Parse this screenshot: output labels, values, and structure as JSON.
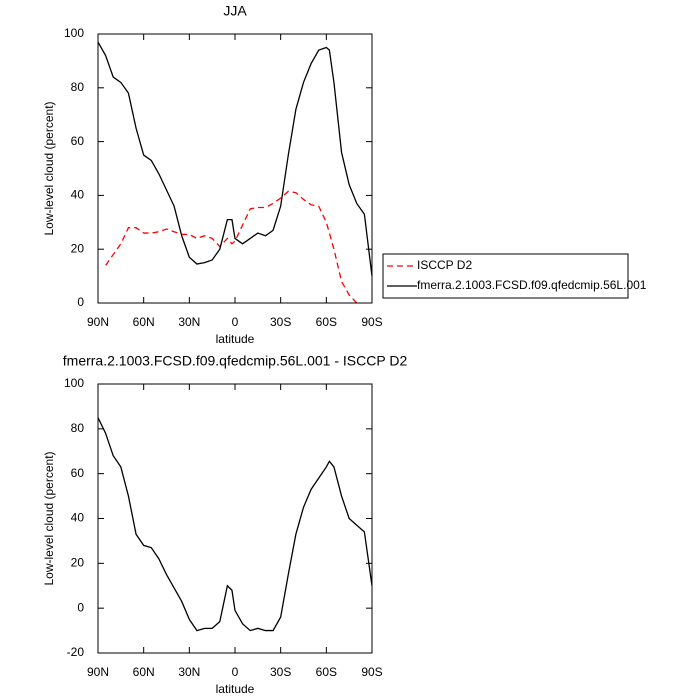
{
  "chart_data": [
    {
      "type": "line",
      "title": "JJA",
      "x_label": "latitude",
      "y_label": "Low-level cloud (percent)",
      "x": [
        90,
        85,
        80,
        75,
        70,
        65,
        60,
        55,
        50,
        45,
        40,
        35,
        30,
        25,
        20,
        15,
        10,
        5,
        2,
        0,
        -5,
        -10,
        -15,
        -20,
        -25,
        -30,
        -35,
        -40,
        -45,
        -50,
        -55,
        -60,
        -62,
        -65,
        -70,
        -75,
        -80,
        -85,
        -90
      ],
      "xlim": [
        90,
        -90
      ],
      "xticks": [
        {
          "value": 90,
          "label": "90N"
        },
        {
          "value": 60,
          "label": "60N"
        },
        {
          "value": 30,
          "label": "30N"
        },
        0,
        {
          "value": -30,
          "label": "30S"
        },
        {
          "value": -60,
          "label": "60S"
        },
        {
          "value": -90,
          "label": "90S"
        }
      ],
      "ylim": [
        0,
        100
      ],
      "yticks": [
        0,
        20,
        40,
        60,
        80,
        100
      ],
      "legend": "right",
      "series": [
        {
          "name": "ISCCP D2",
          "color": "#ff0000",
          "line_style": "dashed",
          "values": [
            null,
            14,
            18,
            22,
            28,
            28,
            26,
            26,
            26.5,
            27.5,
            26.5,
            25.5,
            25.5,
            24,
            25,
            24,
            21,
            24,
            22,
            23,
            29,
            35,
            35.5,
            35.5,
            37,
            39,
            41.5,
            41,
            38.5,
            36.5,
            36,
            30,
            26,
            20,
            8,
            3,
            0,
            null,
            null
          ]
        },
        {
          "name": "fmerra.2.1003.FCSD.f09.qfedcmip.56L.001",
          "color": "#000000",
          "line_style": "solid",
          "values": [
            97,
            92,
            84,
            82,
            78,
            65,
            55,
            53,
            48,
            42,
            36,
            25,
            17,
            14.5,
            15,
            16,
            20,
            31,
            31,
            24,
            22,
            24,
            26,
            25,
            27,
            36,
            55,
            72,
            82,
            89,
            94,
            95,
            94,
            82,
            56,
            44,
            37,
            33,
            10
          ]
        }
      ]
    },
    {
      "type": "line",
      "title": "fmerra.2.1003.FCSD.f09.qfedcmip.56L.001 - ISCCP D2",
      "x_label": "latitude",
      "y_label": "Low-level cloud (percent)",
      "x": [
        90,
        85,
        80,
        75,
        70,
        65,
        60,
        55,
        50,
        45,
        40,
        35,
        30,
        25,
        20,
        15,
        10,
        5,
        2,
        0,
        -5,
        -10,
        -15,
        -20,
        -25,
        -30,
        -35,
        -40,
        -45,
        -50,
        -55,
        -60,
        -62,
        -65,
        -70,
        -75,
        -80,
        -85,
        -90
      ],
      "xlim": [
        90,
        -90
      ],
      "xticks": [
        {
          "value": 90,
          "label": "90N"
        },
        {
          "value": 60,
          "label": "60N"
        },
        {
          "value": 30,
          "label": "30N"
        },
        0,
        {
          "value": -30,
          "label": "30S"
        },
        {
          "value": -60,
          "label": "60S"
        },
        {
          "value": -90,
          "label": "90S"
        }
      ],
      "ylim": [
        -20,
        100
      ],
      "yticks": [
        -20,
        0,
        20,
        40,
        60,
        80,
        100
      ],
      "series": [
        {
          "color": "#000000",
          "line_style": "solid",
          "values": [
            85,
            78,
            68,
            63,
            50,
            33,
            28,
            27,
            22,
            15,
            9,
            3,
            -5,
            -10,
            -9,
            -9,
            -6,
            10,
            8,
            -1,
            -7,
            -10,
            -9,
            -10,
            -10,
            -4,
            15,
            33,
            45,
            53,
            58,
            63,
            65.5,
            63,
            50,
            40,
            37,
            34,
            10
          ]
        }
      ]
    }
  ]
}
